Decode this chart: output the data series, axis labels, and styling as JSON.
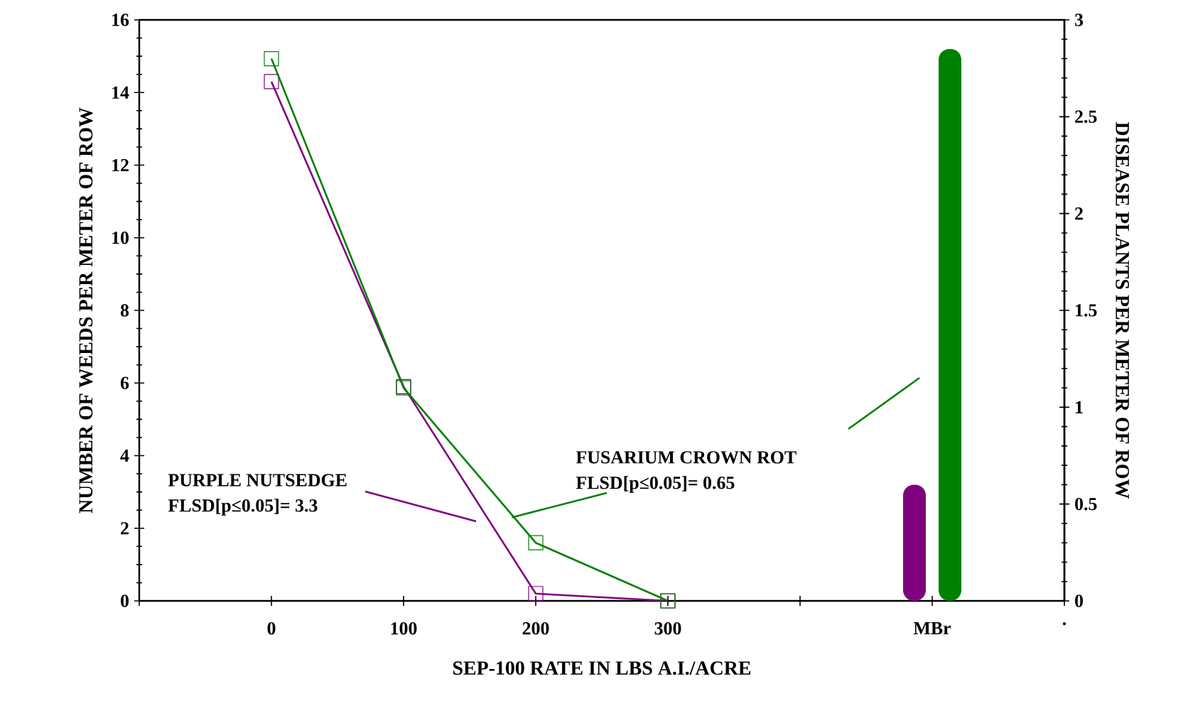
{
  "chart_data": {
    "type": "line",
    "xlabel": "SEP-100 RATE IN LBS A.I./ACRE",
    "ylabel": "NUMBER OF WEEDS PER METER OF ROW",
    "y2label": "DISEASE PLANTS PER METER OF ROW",
    "xlim": [
      -100,
      600
    ],
    "xticks": [
      {
        "value": -100,
        "label": null
      },
      0,
      100,
      200,
      300,
      {
        "value": 400,
        "label": null
      },
      {
        "value": 500,
        "label": "MBr"
      },
      {
        "value": 600,
        "label": "."
      }
    ],
    "ylim": [
      0,
      16
    ],
    "yticks": [
      0,
      2,
      4,
      6,
      8,
      10,
      12,
      14,
      16
    ],
    "y2lim": [
      0,
      3
    ],
    "y2ticks": [
      0,
      0.5,
      1,
      1.5,
      2,
      2.5,
      3
    ],
    "line_style": "solid",
    "series": [
      {
        "axis": "y",
        "color": "#800080",
        "marker": "square",
        "x": [
          0,
          100,
          200,
          300
        ],
        "values": [
          14.3,
          5.9,
          0.2,
          0
        ]
      },
      {
        "axis": "y2",
        "color": "#008000",
        "marker": "square",
        "x": [
          0,
          100,
          200,
          300
        ],
        "values": [
          2.8,
          1.1,
          0.3,
          0
        ]
      },
      {
        "type": "bar",
        "axis": "y",
        "color": "#800080",
        "x": [
          500
        ],
        "values": [
          3.2
        ]
      },
      {
        "type": "bar",
        "axis": "y2",
        "color": "#008000",
        "x": [
          500
        ],
        "values": [
          2.85
        ]
      }
    ],
    "annotations": [
      "PURPLE NUTSEDGE",
      "FLSD[p≤0.05]= 3.3",
      "FUSARIUM CROWN ROT",
      {
        "text": "FLSD[p≤0.05]= 0.65",
        "x": 182,
        "y": 2.3
      }
    ]
  }
}
